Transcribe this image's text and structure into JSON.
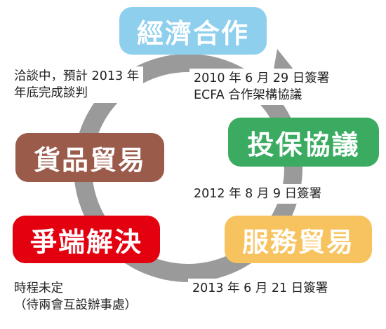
{
  "nodes": {
    "economic_cooperation": {
      "label": "經濟合作",
      "color": "#8ecfee"
    },
    "investment_protection": {
      "label": "投保協議",
      "color": "#3aab61"
    },
    "services_trade": {
      "label": "服務貿易",
      "color": "#f7c35f"
    },
    "dispute_settlement": {
      "label": "爭端解決",
      "color": "#e3000f"
    },
    "goods_trade": {
      "label": "貨品貿易",
      "color": "#9b5b4a"
    }
  },
  "notes": {
    "ecfa": {
      "line1": "2010 年 6 月 29 日簽署",
      "line2": "ECFA 合作架構協議"
    },
    "investment": {
      "line1": "2012 年 8 月 9 日簽署"
    },
    "services": {
      "line1": "2013 年 6 月 21 日簽署"
    },
    "dispute": {
      "line1": "時程未定",
      "line2": "（待兩會互設辦事處）"
    },
    "goods": {
      "line1": "洽談中，預計 2013 年",
      "line2": "年底完成談判"
    }
  },
  "colors": {
    "cycle_arrow": "#9a9a9a"
  }
}
